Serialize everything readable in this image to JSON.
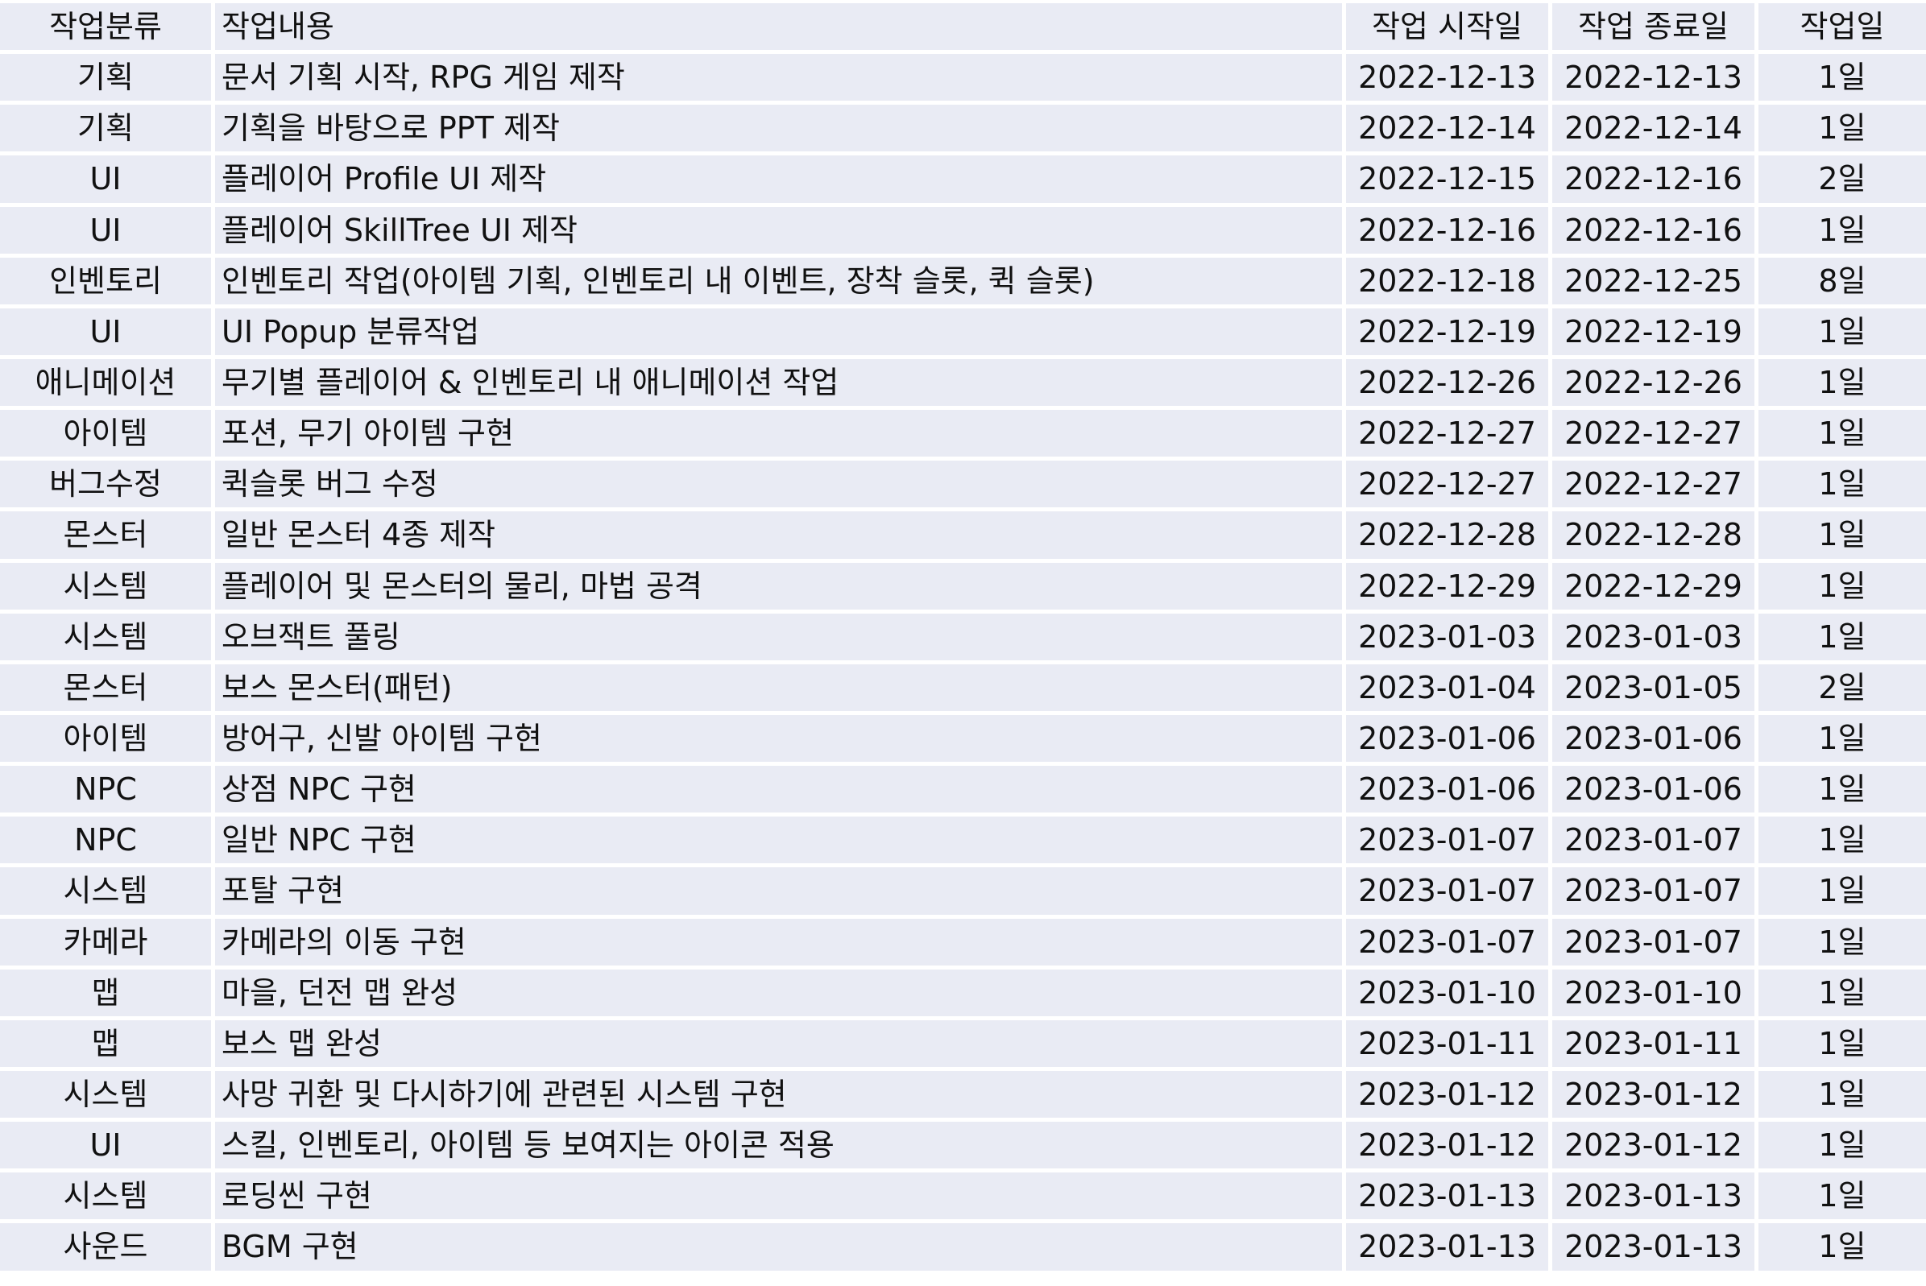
{
  "table": {
    "headers": [
      "작업분류",
      "작업내용",
      "작업 시작일",
      "작업 종료일",
      "작업일"
    ],
    "rows": [
      {
        "category": "기획",
        "content": "문서 기획 시작, RPG 게임 제작",
        "start": "2022-12-13",
        "end": "2022-12-13",
        "days": "1일"
      },
      {
        "category": "기획",
        "content": "기획을 바탕으로 PPT 제작",
        "start": "2022-12-14",
        "end": "2022-12-14",
        "days": "1일"
      },
      {
        "category": "UI",
        "content": "플레이어 Profile UI 제작",
        "start": "2022-12-15",
        "end": "2022-12-16",
        "days": "2일"
      },
      {
        "category": "UI",
        "content": "플레이어 SkillTree UI 제작",
        "start": "2022-12-16",
        "end": "2022-12-16",
        "days": "1일"
      },
      {
        "category": "인벤토리",
        "content": "인벤토리 작업(아이템 기획, 인벤토리 내 이벤트, 장착 슬롯, 퀵 슬롯)",
        "start": "2022-12-18",
        "end": "2022-12-25",
        "days": "8일"
      },
      {
        "category": "UI",
        "content": "UI Popup 분류작업",
        "start": "2022-12-19",
        "end": "2022-12-19",
        "days": "1일"
      },
      {
        "category": "애니메이션",
        "content": "무기별 플레이어 & 인벤토리 내 애니메이션 작업",
        "start": "2022-12-26",
        "end": "2022-12-26",
        "days": "1일"
      },
      {
        "category": "아이템",
        "content": "포션, 무기 아이템 구현",
        "start": "2022-12-27",
        "end": "2022-12-27",
        "days": "1일"
      },
      {
        "category": "버그수정",
        "content": "퀵슬롯 버그 수정",
        "start": "2022-12-27",
        "end": "2022-12-27",
        "days": "1일"
      },
      {
        "category": "몬스터",
        "content": "일반 몬스터 4종 제작",
        "start": "2022-12-28",
        "end": "2022-12-28",
        "days": "1일"
      },
      {
        "category": "시스템",
        "content": "플레이어 및 몬스터의 물리, 마법 공격",
        "start": "2022-12-29",
        "end": "2022-12-29",
        "days": "1일"
      },
      {
        "category": "시스템",
        "content": "오브잭트 풀링",
        "start": "2023-01-03",
        "end": "2023-01-03",
        "days": "1일"
      },
      {
        "category": "몬스터",
        "content": "보스 몬스터(패턴)",
        "start": "2023-01-04",
        "end": "2023-01-05",
        "days": "2일"
      },
      {
        "category": "아이템",
        "content": "방어구, 신발 아이템 구현",
        "start": "2023-01-06",
        "end": "2023-01-06",
        "days": "1일"
      },
      {
        "category": "NPC",
        "content": "상점 NPC 구현",
        "start": "2023-01-06",
        "end": "2023-01-06",
        "days": "1일"
      },
      {
        "category": "NPC",
        "content": "일반 NPC 구현",
        "start": "2023-01-07",
        "end": "2023-01-07",
        "days": "1일"
      },
      {
        "category": "시스템",
        "content": "포탈 구현",
        "start": "2023-01-07",
        "end": "2023-01-07",
        "days": "1일"
      },
      {
        "category": "카메라",
        "content": "카메라의 이동 구현",
        "start": "2023-01-07",
        "end": "2023-01-07",
        "days": "1일"
      },
      {
        "category": "맵",
        "content": "마을, 던전 맵 완성",
        "start": "2023-01-10",
        "end": "2023-01-10",
        "days": "1일"
      },
      {
        "category": "맵",
        "content": "보스 맵 완성",
        "start": "2023-01-11",
        "end": "2023-01-11",
        "days": "1일"
      },
      {
        "category": "시스템",
        "content": "사망 귀환 및 다시하기에 관련된 시스템 구현",
        "start": "2023-01-12",
        "end": "2023-01-12",
        "days": "1일"
      },
      {
        "category": "UI",
        "content": "스킬, 인벤토리, 아이템 등 보여지는 아이콘 적용",
        "start": "2023-01-12",
        "end": "2023-01-12",
        "days": "1일"
      },
      {
        "category": "시스템",
        "content": "로딩씬 구현",
        "start": "2023-01-13",
        "end": "2023-01-13",
        "days": "1일"
      },
      {
        "category": "사운드",
        "content": "BGM 구현",
        "start": "2023-01-13",
        "end": "2023-01-13",
        "days": "1일"
      }
    ]
  }
}
